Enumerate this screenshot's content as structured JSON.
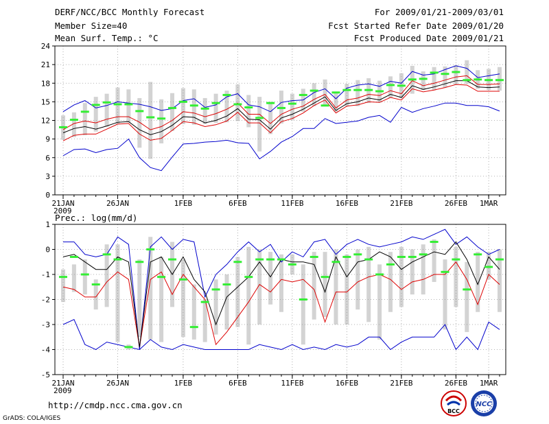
{
  "header": {
    "title": "DERF/NCC/BCC Monthly Forecast",
    "member_size": "Member Size=40",
    "variable": "Mean Surf. Temp.: °C",
    "period": "For 2009/01/21-2009/03/01",
    "start_date": "Fcst Started Refer Date 2009/01/20",
    "produced_date": "Fcst Produced Date 2009/01/21"
  },
  "footer": {
    "url": "http://cmdp.ncc.cma.gov.cn",
    "grads": "GrADS: COLA/IGES",
    "logo_bcc": "BCC",
    "logo_ncc": "NCC"
  },
  "colors": {
    "ensemble_mean": "#000000",
    "median_green": "#33ee33",
    "box_gray": "#d3d3d3",
    "upper_lower_blue": "#0000cc",
    "red_line": "#dd0000",
    "grid": "#999999"
  },
  "chart_data": [
    {
      "type": "line",
      "title": "Mean Surf. Temp.: °C",
      "xlabel": "",
      "ylabel": "",
      "ylim": [
        0,
        24
      ],
      "yticks": [
        "0",
        "3",
        "6",
        "9",
        "12",
        "15",
        "18",
        "21",
        "24"
      ],
      "xticks": [
        {
          "day": 1,
          "label": "21JAN",
          "sublabel": "2009"
        },
        {
          "day": 6,
          "label": "26JAN"
        },
        {
          "day": 12,
          "label": "1FEB"
        },
        {
          "day": 17,
          "label": "6FEB"
        },
        {
          "day": 22,
          "label": "11FEB"
        },
        {
          "day": 27,
          "label": "16FEB"
        },
        {
          "day": 32,
          "label": "21FEB"
        },
        {
          "day": 37,
          "label": "26FEB"
        },
        {
          "day": 40,
          "label": "1MAR"
        }
      ],
      "series": [
        {
          "name": "max",
          "values": [
            13.4,
            14.5,
            15.2,
            14.0,
            14.4,
            15.0,
            14.8,
            14.6,
            14.2,
            13.6,
            13.9,
            15.2,
            15.5,
            14.1,
            14.5,
            15.8,
            16.3,
            14.5,
            14.2,
            13.4,
            14.9,
            15.2,
            15.3,
            16.5,
            17.1,
            15.5,
            17.2,
            17.7,
            17.9,
            17.5,
            18.3,
            18.0,
            19.9,
            19.3,
            19.5,
            20.2,
            20.8,
            20.4,
            18.9,
            19.2,
            19.5
          ]
        },
        {
          "name": "upper",
          "values": [
            10.5,
            11.5,
            11.9,
            11.6,
            12.2,
            12.6,
            12.6,
            11.7,
            10.5,
            11.0,
            12.0,
            13.4,
            13.2,
            12.6,
            13.1,
            13.8,
            14.8,
            13.0,
            13.0,
            11.5,
            13.0,
            13.8,
            14.3,
            15.4,
            16.2,
            14.0,
            15.3,
            15.6,
            16.2,
            16.0,
            16.8,
            16.3,
            18.4,
            17.6,
            18.0,
            18.5,
            19.0,
            19.2,
            17.8,
            17.8,
            17.9
          ]
        },
        {
          "name": "mean",
          "values": [
            10.0,
            10.7,
            11.0,
            10.6,
            11.1,
            11.7,
            11.8,
            10.5,
            9.7,
            10.2,
            11.2,
            12.6,
            12.5,
            11.6,
            12.0,
            12.7,
            13.9,
            12.2,
            12.1,
            10.6,
            12.4,
            13.0,
            13.8,
            14.8,
            15.8,
            13.6,
            14.7,
            15.0,
            15.6,
            15.3,
            16.2,
            15.7,
            17.6,
            17.0,
            17.4,
            17.9,
            18.4,
            18.4,
            17.4,
            17.3,
            17.4
          ]
        },
        {
          "name": "lower",
          "values": [
            8.7,
            9.6,
            9.8,
            9.8,
            10.6,
            11.4,
            11.5,
            9.8,
            8.8,
            9.1,
            10.4,
            11.8,
            11.6,
            11.0,
            11.3,
            11.9,
            13.3,
            11.6,
            11.6,
            10.0,
            11.8,
            12.3,
            13.2,
            14.4,
            15.3,
            13.2,
            14.3,
            14.5,
            15.0,
            14.9,
            15.7,
            15.3,
            17.1,
            16.6,
            16.9,
            17.3,
            17.8,
            17.7,
            16.7,
            16.7,
            16.7
          ]
        },
        {
          "name": "min",
          "values": [
            6.3,
            7.3,
            7.4,
            6.8,
            7.3,
            7.5,
            9.0,
            6.0,
            4.4,
            3.9,
            6.1,
            8.2,
            8.3,
            8.5,
            8.6,
            8.8,
            8.4,
            8.3,
            5.8,
            7.0,
            8.5,
            9.4,
            10.7,
            10.7,
            12.3,
            11.5,
            11.7,
            11.9,
            12.5,
            12.8,
            11.7,
            14.1,
            13.3,
            13.9,
            14.3,
            14.8,
            14.8,
            14.4,
            14.4,
            14.2,
            13.5
          ]
        },
        {
          "name": "median",
          "values": [
            10.9,
            12.1,
            13.4,
            14.5,
            14.9,
            14.6,
            14.6,
            13.5,
            12.5,
            12.3,
            14.0,
            15.0,
            14.4,
            13.9,
            14.8,
            16.1,
            14.6,
            14.1,
            12.4,
            14.8,
            14.0,
            14.7,
            16.1,
            16.8,
            14.4,
            16.5,
            16.9,
            16.9,
            16.9,
            16.7,
            17.7,
            17.6,
            18.6,
            18.7,
            19.7,
            19.5,
            19.8,
            18.5,
            18.6,
            18.5,
            18.5
          ]
        },
        {
          "name": "box_high",
          "values": [
            12.8,
            13.3,
            14.8,
            15.8,
            16.3,
            17.3,
            17.0,
            15.6,
            18.2,
            15.4,
            16.4,
            17.2,
            17.0,
            15.6,
            16.3,
            16.8,
            17.8,
            16.1,
            15.8,
            15.0,
            16.8,
            16.3,
            17.1,
            18.0,
            18.6,
            16.6,
            17.9,
            18.5,
            18.8,
            18.4,
            19.1,
            19.6,
            20.8,
            19.9,
            20.6,
            20.7,
            20.9,
            21.7,
            20.1,
            20.3,
            20.6
          ]
        },
        {
          "name": "box_low",
          "values": [
            8.9,
            9.3,
            9.6,
            10.2,
            11.0,
            11.4,
            11.7,
            7.6,
            5.8,
            8.3,
            10.3,
            11.4,
            11.3,
            11.4,
            11.6,
            11.7,
            11.9,
            10.9,
            7.0,
            9.8,
            11.5,
            12.1,
            13.4,
            14.3,
            14.4,
            13.4,
            14.3,
            14.3,
            14.8,
            14.9,
            15.6,
            15.6,
            16.3,
            16.9,
            16.9,
            17.3,
            17.8,
            17.9,
            17.1,
            16.9,
            16.8
          ]
        }
      ]
    },
    {
      "type": "line",
      "title": "Prec.: log(mm/d)",
      "xlabel": "",
      "ylabel": "",
      "ylim": [
        -5,
        1
      ],
      "yticks": [
        "-5",
        "-4",
        "-3",
        "-2",
        "-1",
        "0",
        "1"
      ],
      "xticks": [
        {
          "day": 1,
          "label": "21JAN",
          "sublabel": "2009"
        },
        {
          "day": 6,
          "label": "26JAN"
        },
        {
          "day": 12,
          "label": "1FEB"
        },
        {
          "day": 17,
          "label": "6FEB"
        },
        {
          "day": 22,
          "label": "11FEB"
        },
        {
          "day": 27,
          "label": "16FEB"
        },
        {
          "day": 32,
          "label": "21FEB"
        },
        {
          "day": 37,
          "label": "26FEB"
        },
        {
          "day": 40,
          "label": "1MAR"
        }
      ],
      "series": [
        {
          "name": "max",
          "values": [
            0.3,
            0.3,
            -0.2,
            -0.3,
            -0.2,
            0.5,
            0.2,
            -4.0,
            0.1,
            0.5,
            0.0,
            0.4,
            0.3,
            -1.9,
            -1.0,
            -0.6,
            -0.1,
            0.3,
            -0.1,
            0.2,
            -0.5,
            -0.1,
            -0.3,
            0.3,
            0.4,
            -0.2,
            0.2,
            0.4,
            0.2,
            0.1,
            0.2,
            0.3,
            0.5,
            0.4,
            0.6,
            0.8,
            0.2,
            0.5,
            0.1,
            -0.2,
            0.0
          ]
        },
        {
          "name": "mean",
          "values": [
            -0.3,
            -0.2,
            -0.5,
            -0.8,
            -0.8,
            -0.3,
            -0.5,
            -3.9,
            -0.5,
            -0.3,
            -1.0,
            -0.3,
            -1.2,
            -1.7,
            -3.0,
            -1.9,
            -1.5,
            -1.1,
            -0.5,
            -1.1,
            -0.4,
            -0.5,
            -0.5,
            -0.6,
            -1.7,
            -0.3,
            -1.1,
            -0.5,
            -0.4,
            -0.1,
            -0.3,
            -0.8,
            -0.5,
            -0.3,
            -0.1,
            -0.2,
            0.3,
            -0.4,
            -1.4,
            -0.3,
            -0.8
          ]
        },
        {
          "name": "red",
          "values": [
            -1.5,
            -1.6,
            -1.9,
            -1.9,
            -1.3,
            -0.9,
            -1.2,
            -3.9,
            -1.2,
            -0.9,
            -1.8,
            -1.0,
            -1.5,
            -2.0,
            -3.8,
            -3.3,
            -2.7,
            -2.1,
            -1.4,
            -1.7,
            -1.2,
            -1.3,
            -1.2,
            -1.6,
            -2.9,
            -1.7,
            -1.7,
            -1.3,
            -1.1,
            -1.0,
            -1.2,
            -1.6,
            -1.3,
            -1.2,
            -1.0,
            -1.0,
            -0.5,
            -1.2,
            -2.2,
            -1.0,
            -1.4
          ]
        },
        {
          "name": "min",
          "values": [
            -3.0,
            -2.8,
            -3.8,
            -4.0,
            -3.7,
            -3.8,
            -3.9,
            -4.0,
            -3.6,
            -3.9,
            -4.0,
            -3.8,
            -3.9,
            -4.0,
            -4.0,
            -4.0,
            -4.0,
            -4.0,
            -3.8,
            -3.9,
            -4.0,
            -3.8,
            -4.0,
            -3.9,
            -4.0,
            -3.8,
            -3.9,
            -3.8,
            -3.5,
            -3.5,
            -4.0,
            -3.7,
            -3.5,
            -3.5,
            -3.5,
            -3.0,
            -4.0,
            -3.5,
            -4.0,
            -2.9,
            -3.2
          ]
        },
        {
          "name": "median",
          "values": [
            -1.1,
            -0.3,
            -1.0,
            -1.4,
            -0.2,
            -0.4,
            -3.9,
            -0.5,
            0.0,
            -1.1,
            -0.4,
            -1.2,
            -3.1,
            -2.1,
            -1.6,
            -1.4,
            -0.5,
            -1.1,
            -0.4,
            -0.4,
            -0.4,
            -0.6,
            -2.0,
            -0.3,
            -1.1,
            -0.5,
            -0.3,
            -0.2,
            -0.4,
            -1.0,
            -0.6,
            -0.3,
            -0.3,
            -0.2,
            0.3,
            -0.9,
            -0.4,
            -1.6,
            -0.2,
            -0.7,
            -0.4
          ]
        },
        {
          "name": "box_high",
          "values": [
            -0.8,
            -0.6,
            -0.4,
            -1.2,
            0.2,
            0.2,
            -3.8,
            -0.4,
            0.5,
            -0.3,
            0.3,
            -0.4,
            -1.4,
            -2.0,
            -1.2,
            -1.0,
            -0.3,
            0.1,
            0.0,
            -0.1,
            -0.2,
            -0.2,
            -0.6,
            -0.1,
            -0.1,
            0.0,
            -0.2,
            0.0,
            0.1,
            -0.6,
            -0.1,
            0.1,
            0.0,
            0.2,
            0.4,
            -0.4,
            0.1,
            -0.5,
            -0.1,
            -0.1,
            0.0
          ]
        },
        {
          "name": "box_low",
          "values": [
            -2.1,
            -1.7,
            -1.8,
            -2.4,
            -2.3,
            -3.7,
            -4.0,
            -3.5,
            -3.6,
            -3.7,
            -2.3,
            -3.5,
            -3.6,
            -3.7,
            -3.4,
            -3.2,
            -3.1,
            -3.8,
            -3.0,
            -2.2,
            -2.5,
            -1.0,
            -3.8,
            -2.8,
            -2.7,
            -3.0,
            -3.0,
            -2.4,
            -2.9,
            -3.6,
            -2.5,
            -2.3,
            -1.8,
            -1.8,
            -1.3,
            -3.2,
            -2.3,
            -3.3,
            -2.5,
            -1.2,
            -2.5
          ]
        }
      ]
    }
  ]
}
